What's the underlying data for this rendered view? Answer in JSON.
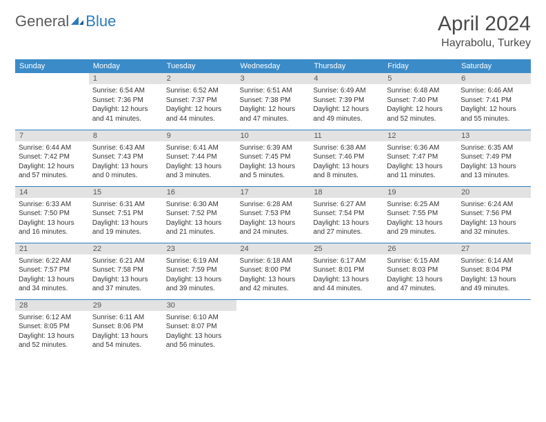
{
  "brand": {
    "part1": "General",
    "part2": "Blue"
  },
  "title": "April 2024",
  "location": "Hayrabolu, Turkey",
  "colors": {
    "header_bg": "#3b8bc8",
    "header_text": "#ffffff",
    "daynum_bg": "#e2e2e2",
    "daynum_text": "#555555",
    "border": "#2b7bbf",
    "logo_gray": "#5a5a5a",
    "logo_blue": "#2b7bbf",
    "body_text": "#333333",
    "title_text": "#4a4a4a",
    "page_bg": "#ffffff"
  },
  "typography": {
    "title_fontsize": 30,
    "location_fontsize": 16,
    "logo_fontsize": 22,
    "header_fontsize": 11,
    "daynum_fontsize": 11,
    "content_fontsize": 10
  },
  "weekdays": [
    "Sunday",
    "Monday",
    "Tuesday",
    "Wednesday",
    "Thursday",
    "Friday",
    "Saturday"
  ],
  "grid": {
    "rows": 5,
    "cols": 7,
    "first_day_offset": 1,
    "days_in_month": 30
  },
  "days": {
    "1": {
      "sunrise": "6:54 AM",
      "sunset": "7:36 PM",
      "daylight": "12 hours and 41 minutes."
    },
    "2": {
      "sunrise": "6:52 AM",
      "sunset": "7:37 PM",
      "daylight": "12 hours and 44 minutes."
    },
    "3": {
      "sunrise": "6:51 AM",
      "sunset": "7:38 PM",
      "daylight": "12 hours and 47 minutes."
    },
    "4": {
      "sunrise": "6:49 AM",
      "sunset": "7:39 PM",
      "daylight": "12 hours and 49 minutes."
    },
    "5": {
      "sunrise": "6:48 AM",
      "sunset": "7:40 PM",
      "daylight": "12 hours and 52 minutes."
    },
    "6": {
      "sunrise": "6:46 AM",
      "sunset": "7:41 PM",
      "daylight": "12 hours and 55 minutes."
    },
    "7": {
      "sunrise": "6:44 AM",
      "sunset": "7:42 PM",
      "daylight": "12 hours and 57 minutes."
    },
    "8": {
      "sunrise": "6:43 AM",
      "sunset": "7:43 PM",
      "daylight": "13 hours and 0 minutes."
    },
    "9": {
      "sunrise": "6:41 AM",
      "sunset": "7:44 PM",
      "daylight": "13 hours and 3 minutes."
    },
    "10": {
      "sunrise": "6:39 AM",
      "sunset": "7:45 PM",
      "daylight": "13 hours and 5 minutes."
    },
    "11": {
      "sunrise": "6:38 AM",
      "sunset": "7:46 PM",
      "daylight": "13 hours and 8 minutes."
    },
    "12": {
      "sunrise": "6:36 AM",
      "sunset": "7:47 PM",
      "daylight": "13 hours and 11 minutes."
    },
    "13": {
      "sunrise": "6:35 AM",
      "sunset": "7:49 PM",
      "daylight": "13 hours and 13 minutes."
    },
    "14": {
      "sunrise": "6:33 AM",
      "sunset": "7:50 PM",
      "daylight": "13 hours and 16 minutes."
    },
    "15": {
      "sunrise": "6:31 AM",
      "sunset": "7:51 PM",
      "daylight": "13 hours and 19 minutes."
    },
    "16": {
      "sunrise": "6:30 AM",
      "sunset": "7:52 PM",
      "daylight": "13 hours and 21 minutes."
    },
    "17": {
      "sunrise": "6:28 AM",
      "sunset": "7:53 PM",
      "daylight": "13 hours and 24 minutes."
    },
    "18": {
      "sunrise": "6:27 AM",
      "sunset": "7:54 PM",
      "daylight": "13 hours and 27 minutes."
    },
    "19": {
      "sunrise": "6:25 AM",
      "sunset": "7:55 PM",
      "daylight": "13 hours and 29 minutes."
    },
    "20": {
      "sunrise": "6:24 AM",
      "sunset": "7:56 PM",
      "daylight": "13 hours and 32 minutes."
    },
    "21": {
      "sunrise": "6:22 AM",
      "sunset": "7:57 PM",
      "daylight": "13 hours and 34 minutes."
    },
    "22": {
      "sunrise": "6:21 AM",
      "sunset": "7:58 PM",
      "daylight": "13 hours and 37 minutes."
    },
    "23": {
      "sunrise": "6:19 AM",
      "sunset": "7:59 PM",
      "daylight": "13 hours and 39 minutes."
    },
    "24": {
      "sunrise": "6:18 AM",
      "sunset": "8:00 PM",
      "daylight": "13 hours and 42 minutes."
    },
    "25": {
      "sunrise": "6:17 AM",
      "sunset": "8:01 PM",
      "daylight": "13 hours and 44 minutes."
    },
    "26": {
      "sunrise": "6:15 AM",
      "sunset": "8:03 PM",
      "daylight": "13 hours and 47 minutes."
    },
    "27": {
      "sunrise": "6:14 AM",
      "sunset": "8:04 PM",
      "daylight": "13 hours and 49 minutes."
    },
    "28": {
      "sunrise": "6:12 AM",
      "sunset": "8:05 PM",
      "daylight": "13 hours and 52 minutes."
    },
    "29": {
      "sunrise": "6:11 AM",
      "sunset": "8:06 PM",
      "daylight": "13 hours and 54 minutes."
    },
    "30": {
      "sunrise": "6:10 AM",
      "sunset": "8:07 PM",
      "daylight": "13 hours and 56 minutes."
    }
  },
  "labels": {
    "sunrise_prefix": "Sunrise: ",
    "sunset_prefix": "Sunset: ",
    "daylight_prefix": "Daylight: "
  }
}
